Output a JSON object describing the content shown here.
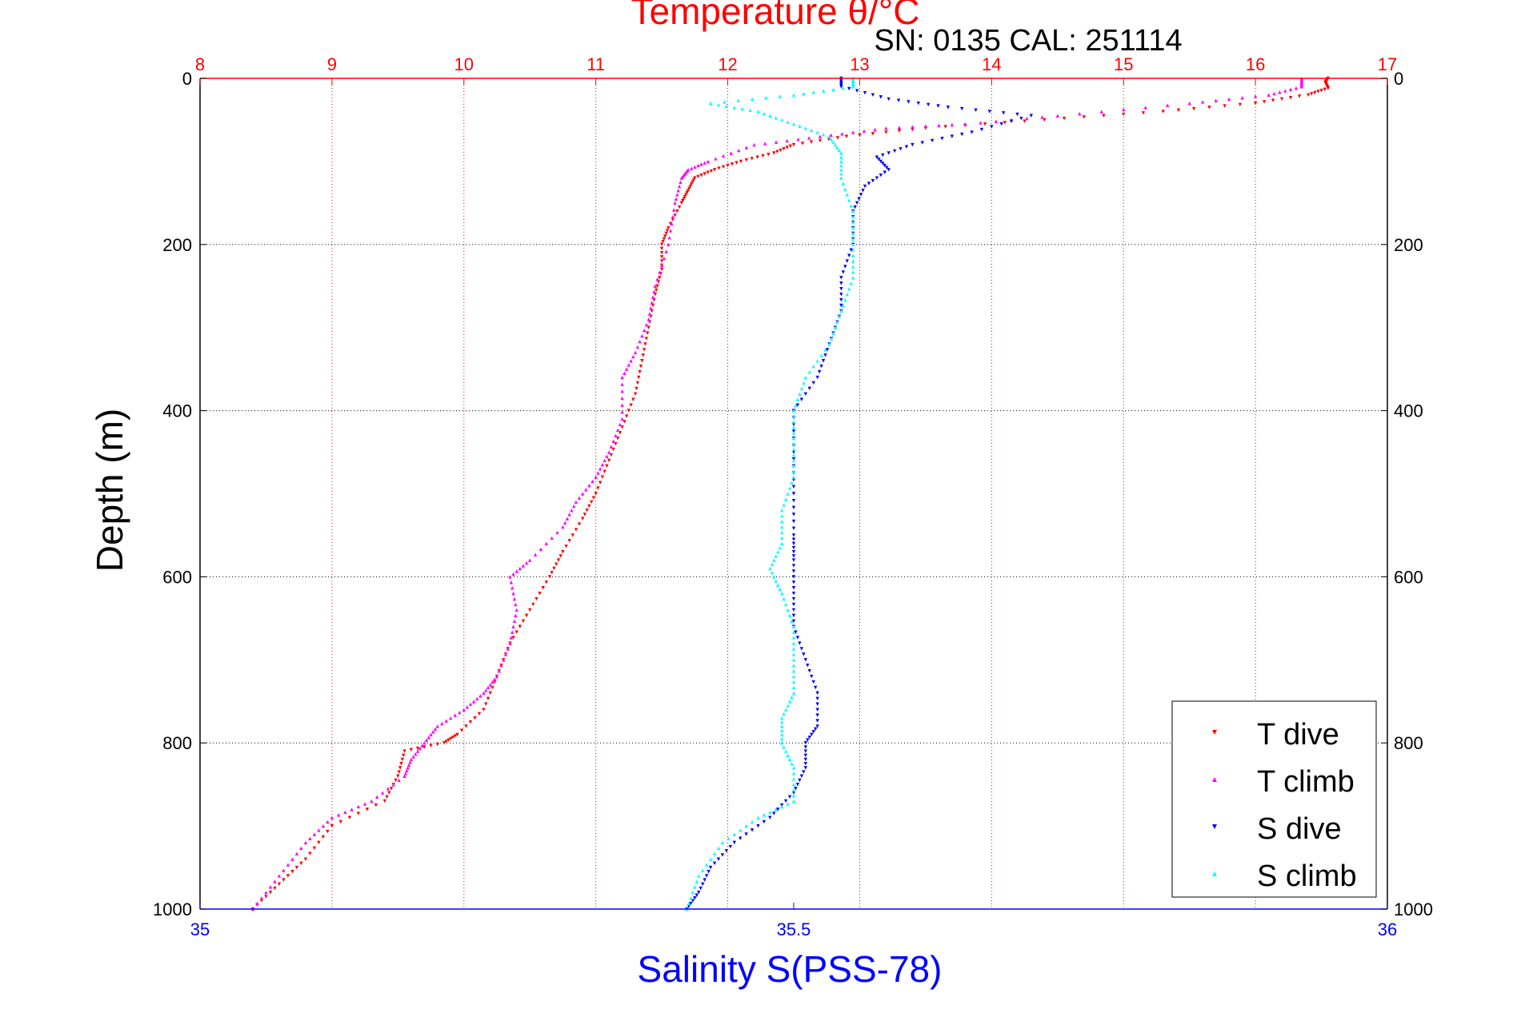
{
  "chart_data": {
    "type": "scatter",
    "title": "Temperature θ/°C",
    "subtitle": "SN: 0135  CAL: 251114",
    "ylabel": "Depth (m)",
    "xlabel": "Salinity S(PSS-78)",
    "y_axis": {
      "lim": [
        0,
        1000
      ],
      "reversed": true,
      "ticks": [
        0,
        200,
        400,
        600,
        800,
        1000
      ],
      "tick_labels": [
        "0",
        "200",
        "400",
        "600",
        "800",
        "1000"
      ]
    },
    "temperature_axis": {
      "position": "top",
      "lim": [
        8,
        17
      ],
      "ticks": [
        8,
        9,
        10,
        11,
        12,
        13,
        14,
        15,
        16,
        17
      ],
      "tick_labels": [
        "8",
        "9",
        "10",
        "11",
        "12",
        "13",
        "14",
        "15",
        "16",
        "17"
      ]
    },
    "salinity_axis": {
      "position": "bottom",
      "lim": [
        35,
        36
      ],
      "ticks": [
        35,
        35.5,
        36
      ],
      "tick_labels": [
        "35",
        "35.5",
        "36"
      ]
    },
    "grid": true,
    "legend_position": "bottom-right",
    "colors": {
      "title": "#ff0000",
      "temperature_axis": "#ff0000",
      "salinity_axis": "#0000ff",
      "grid": "#000000",
      "t_grid": "#ff0000"
    },
    "series": [
      {
        "name": "T dive",
        "axis": "temperature",
        "color": "#ff0000",
        "marker": "triangle-down",
        "points": [
          [
            16.55,
            0
          ],
          [
            16.53,
            5
          ],
          [
            16.55,
            12
          ],
          [
            16.4,
            20
          ],
          [
            16.0,
            30
          ],
          [
            15.3,
            40
          ],
          [
            14.4,
            50
          ],
          [
            13.5,
            60
          ],
          [
            12.9,
            70
          ],
          [
            12.5,
            80
          ],
          [
            12.35,
            90
          ],
          [
            12.1,
            100
          ],
          [
            11.9,
            110
          ],
          [
            11.75,
            120
          ],
          [
            11.7,
            135
          ],
          [
            11.65,
            150
          ],
          [
            11.55,
            180
          ],
          [
            11.5,
            200
          ],
          [
            11.5,
            230
          ],
          [
            11.45,
            260
          ],
          [
            11.4,
            300
          ],
          [
            11.35,
            340
          ],
          [
            11.3,
            380
          ],
          [
            11.2,
            420
          ],
          [
            11.1,
            460
          ],
          [
            11.0,
            500
          ],
          [
            10.9,
            530
          ],
          [
            10.75,
            570
          ],
          [
            10.65,
            600
          ],
          [
            10.5,
            640
          ],
          [
            10.35,
            680
          ],
          [
            10.25,
            720
          ],
          [
            10.15,
            760
          ],
          [
            9.95,
            790
          ],
          [
            9.85,
            800
          ],
          [
            9.55,
            810
          ],
          [
            9.5,
            840
          ],
          [
            9.4,
            870
          ],
          [
            9.0,
            900
          ],
          [
            8.8,
            940
          ],
          [
            8.6,
            970
          ],
          [
            8.4,
            1000
          ]
        ]
      },
      {
        "name": "T climb",
        "axis": "temperature",
        "color": "#ff00ff",
        "marker": "triangle-up",
        "points": [
          [
            8.4,
            1000
          ],
          [
            8.6,
            960
          ],
          [
            8.8,
            920
          ],
          [
            9.0,
            890
          ],
          [
            9.3,
            870
          ],
          [
            9.55,
            840
          ],
          [
            9.6,
            820
          ],
          [
            9.7,
            800
          ],
          [
            9.8,
            780
          ],
          [
            10.0,
            760
          ],
          [
            10.15,
            740
          ],
          [
            10.25,
            720
          ],
          [
            10.35,
            680
          ],
          [
            10.4,
            640
          ],
          [
            10.35,
            600
          ],
          [
            10.5,
            580
          ],
          [
            10.75,
            540
          ],
          [
            10.85,
            510
          ],
          [
            11.0,
            480
          ],
          [
            11.1,
            450
          ],
          [
            11.2,
            410
          ],
          [
            11.2,
            360
          ],
          [
            11.3,
            330
          ],
          [
            11.4,
            290
          ],
          [
            11.45,
            250
          ],
          [
            11.55,
            200
          ],
          [
            11.6,
            150
          ],
          [
            11.65,
            120
          ],
          [
            11.7,
            110
          ],
          [
            11.85,
            100
          ],
          [
            12.2,
            80
          ],
          [
            12.7,
            70
          ],
          [
            13.2,
            60
          ],
          [
            13.8,
            55
          ],
          [
            14.5,
            45
          ],
          [
            15.5,
            30
          ],
          [
            16.1,
            20
          ],
          [
            16.35,
            10
          ],
          [
            16.35,
            0
          ]
        ]
      },
      {
        "name": "S dive",
        "axis": "salinity",
        "color": "#0000ff",
        "marker": "triangle-down",
        "points": [
          [
            35.54,
            0
          ],
          [
            35.54,
            10
          ],
          [
            35.58,
            25
          ],
          [
            35.63,
            35
          ],
          [
            35.7,
            45
          ],
          [
            35.65,
            65
          ],
          [
            35.6,
            80
          ],
          [
            35.57,
            95
          ],
          [
            35.58,
            110
          ],
          [
            35.56,
            130
          ],
          [
            35.55,
            160
          ],
          [
            35.55,
            200
          ],
          [
            35.54,
            240
          ],
          [
            35.54,
            280
          ],
          [
            35.53,
            320
          ],
          [
            35.52,
            360
          ],
          [
            35.5,
            400
          ],
          [
            35.5,
            450
          ],
          [
            35.5,
            500
          ],
          [
            35.5,
            550
          ],
          [
            35.5,
            580
          ],
          [
            35.5,
            620
          ],
          [
            35.5,
            660
          ],
          [
            35.51,
            700
          ],
          [
            35.52,
            740
          ],
          [
            35.52,
            780
          ],
          [
            35.51,
            800
          ],
          [
            35.51,
            830
          ],
          [
            35.5,
            860
          ],
          [
            35.48,
            890
          ],
          [
            35.45,
            920
          ],
          [
            35.43,
            950
          ],
          [
            35.42,
            980
          ],
          [
            35.41,
            1000
          ]
        ]
      },
      {
        "name": "S climb",
        "axis": "salinity",
        "color": "#00ffff",
        "marker": "triangle-up",
        "points": [
          [
            35.41,
            1000
          ],
          [
            35.42,
            960
          ],
          [
            35.44,
            920
          ],
          [
            35.47,
            890
          ],
          [
            35.5,
            870
          ],
          [
            35.5,
            830
          ],
          [
            35.49,
            800
          ],
          [
            35.49,
            770
          ],
          [
            35.5,
            740
          ],
          [
            35.5,
            700
          ],
          [
            35.5,
            660
          ],
          [
            35.49,
            620
          ],
          [
            35.48,
            590
          ],
          [
            35.49,
            560
          ],
          [
            35.49,
            520
          ],
          [
            35.5,
            480
          ],
          [
            35.5,
            440
          ],
          [
            35.5,
            400
          ],
          [
            35.51,
            360
          ],
          [
            35.53,
            320
          ],
          [
            35.54,
            280
          ],
          [
            35.55,
            240
          ],
          [
            35.55,
            200
          ],
          [
            35.55,
            160
          ],
          [
            35.54,
            120
          ],
          [
            35.54,
            90
          ],
          [
            35.53,
            70
          ],
          [
            35.5,
            55
          ],
          [
            35.47,
            40
          ],
          [
            35.43,
            30
          ],
          [
            35.5,
            20
          ],
          [
            35.55,
            10
          ],
          [
            35.55,
            0
          ]
        ]
      }
    ]
  }
}
